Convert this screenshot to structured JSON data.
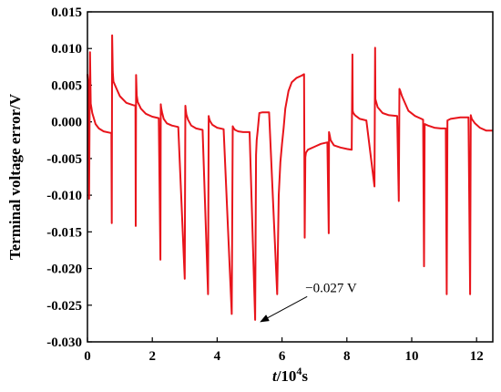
{
  "chart_data": {
    "type": "line",
    "title": "",
    "xlabel": {
      "italic": "t",
      "plain": "/10",
      "sup": "4",
      "unit": "s"
    },
    "ylabel": "Terminal voltage error/V",
    "xlim": [
      0,
      12.5
    ],
    "ylim": [
      -0.03,
      0.015
    ],
    "xticks": [
      0,
      2,
      4,
      6,
      8,
      10,
      12
    ],
    "yticks": [
      0.015,
      0.01,
      0.005,
      0.0,
      -0.005,
      -0.01,
      -0.015,
      -0.02,
      -0.025,
      -0.03
    ],
    "ytick_labels": [
      "0.015",
      "0.010",
      "0.005",
      "0.000",
      "-0.005",
      "-0.010",
      "-0.015",
      "-0.020",
      "-0.025",
      "-0.030"
    ],
    "grid": false,
    "series_color": "#e8141b",
    "annotation": {
      "text": "−0.027 V",
      "x": 5.2,
      "y": -0.027,
      "text_x": 7.0,
      "text_y": -0.0232
    },
    "series": [
      {
        "x": [
          0,
          0.03,
          0.05,
          0.08,
          0.1,
          0.15,
          0.25,
          0.35,
          0.5,
          0.7,
          0.74,
          0.75,
          0.76,
          0.78,
          0.8,
          0.9,
          1.0,
          1.2,
          1.4,
          1.48,
          1.49,
          1.5,
          1.52,
          1.55,
          1.65,
          1.8,
          2.0,
          2.2,
          2.25,
          2.26,
          2.27,
          2.3,
          2.35,
          2.45,
          2.6,
          2.8,
          3.0,
          3.02,
          3.03,
          3.05,
          3.1,
          3.2,
          3.35,
          3.55,
          3.72,
          3.74,
          3.75,
          3.78,
          3.85,
          4.0,
          4.2,
          4.45,
          4.48,
          4.5,
          4.55,
          4.65,
          4.8,
          5.0,
          5.17,
          5.2,
          5.22,
          5.25,
          5.3,
          5.4,
          5.6,
          5.85,
          5.9,
          5.95,
          6.0,
          6.05,
          6.1,
          6.2,
          6.3,
          6.45,
          6.6,
          6.68,
          6.7,
          6.72,
          6.74,
          6.8,
          7.0,
          7.2,
          7.4,
          7.44,
          7.45,
          7.47,
          7.5,
          7.6,
          7.8,
          8.0,
          8.15,
          8.17,
          8.18,
          8.2,
          8.25,
          8.4,
          8.6,
          8.85,
          8.87,
          8.88,
          8.9,
          8.95,
          9.1,
          9.3,
          9.55,
          9.6,
          9.62,
          9.65,
          9.7,
          9.9,
          10.1,
          10.3,
          10.35,
          10.38,
          10.4,
          10.5,
          10.7,
          10.9,
          11.05,
          11.08,
          11.1,
          11.2,
          11.5,
          11.75,
          11.8,
          11.82,
          11.85,
          11.95,
          12.1,
          12.3,
          12.5
        ],
        "y": [
          0.0065,
          0.005,
          -0.0105,
          0.0095,
          0.0025,
          0.0012,
          -0.0003,
          -0.0009,
          -0.0013,
          -0.0015,
          -0.0015,
          -0.0138,
          0.0118,
          0.0068,
          0.0055,
          0.0045,
          0.0035,
          0.0026,
          0.0023,
          0.0022,
          -0.0142,
          0.0064,
          0.0036,
          0.0027,
          0.0018,
          0.0011,
          0.0007,
          0.0005,
          -0.0188,
          0.0024,
          0.002,
          0.0013,
          0.0004,
          -0.0002,
          -0.0005,
          -0.0007,
          -0.0214,
          0.0022,
          0.0017,
          0.001,
          0.0003,
          -0.0005,
          -0.0009,
          -0.0011,
          -0.0235,
          0.0008,
          0.0005,
          0.0001,
          -0.0004,
          -0.0008,
          -0.001,
          -0.0262,
          -0.0006,
          -0.0008,
          -0.0011,
          -0.0013,
          -0.0014,
          -0.0014,
          -0.027,
          -0.0045,
          -0.0025,
          -0.0012,
          0.0012,
          0.0013,
          0.0013,
          -0.0235,
          -0.01,
          -0.0055,
          -0.003,
          -0.0008,
          0.0018,
          0.0042,
          0.0054,
          0.006,
          0.0063,
          0.0065,
          -0.0158,
          -0.0048,
          -0.0042,
          -0.0038,
          -0.0034,
          -0.003,
          -0.0028,
          -0.0152,
          -0.0014,
          -0.0018,
          -0.0025,
          -0.0032,
          -0.0035,
          -0.0037,
          -0.0038,
          0.0092,
          0.0015,
          0.0012,
          0.0009,
          0.0004,
          0.0002,
          -0.0088,
          0.0101,
          0.0031,
          0.0028,
          0.002,
          0.0012,
          0.0009,
          0.0008,
          -0.0108,
          0.0045,
          0.0042,
          0.0035,
          0.0015,
          0.0008,
          0.0004,
          0.0003,
          -0.0197,
          -0.0003,
          -0.0005,
          -0.0008,
          -0.0009,
          -0.0009,
          -0.0235,
          0.0002,
          0.0004,
          0.0006,
          0.0006,
          -0.0235,
          0.0009,
          0.0004,
          -0.0002,
          -0.0008,
          -0.0012,
          -0.0012
        ]
      }
    ]
  }
}
